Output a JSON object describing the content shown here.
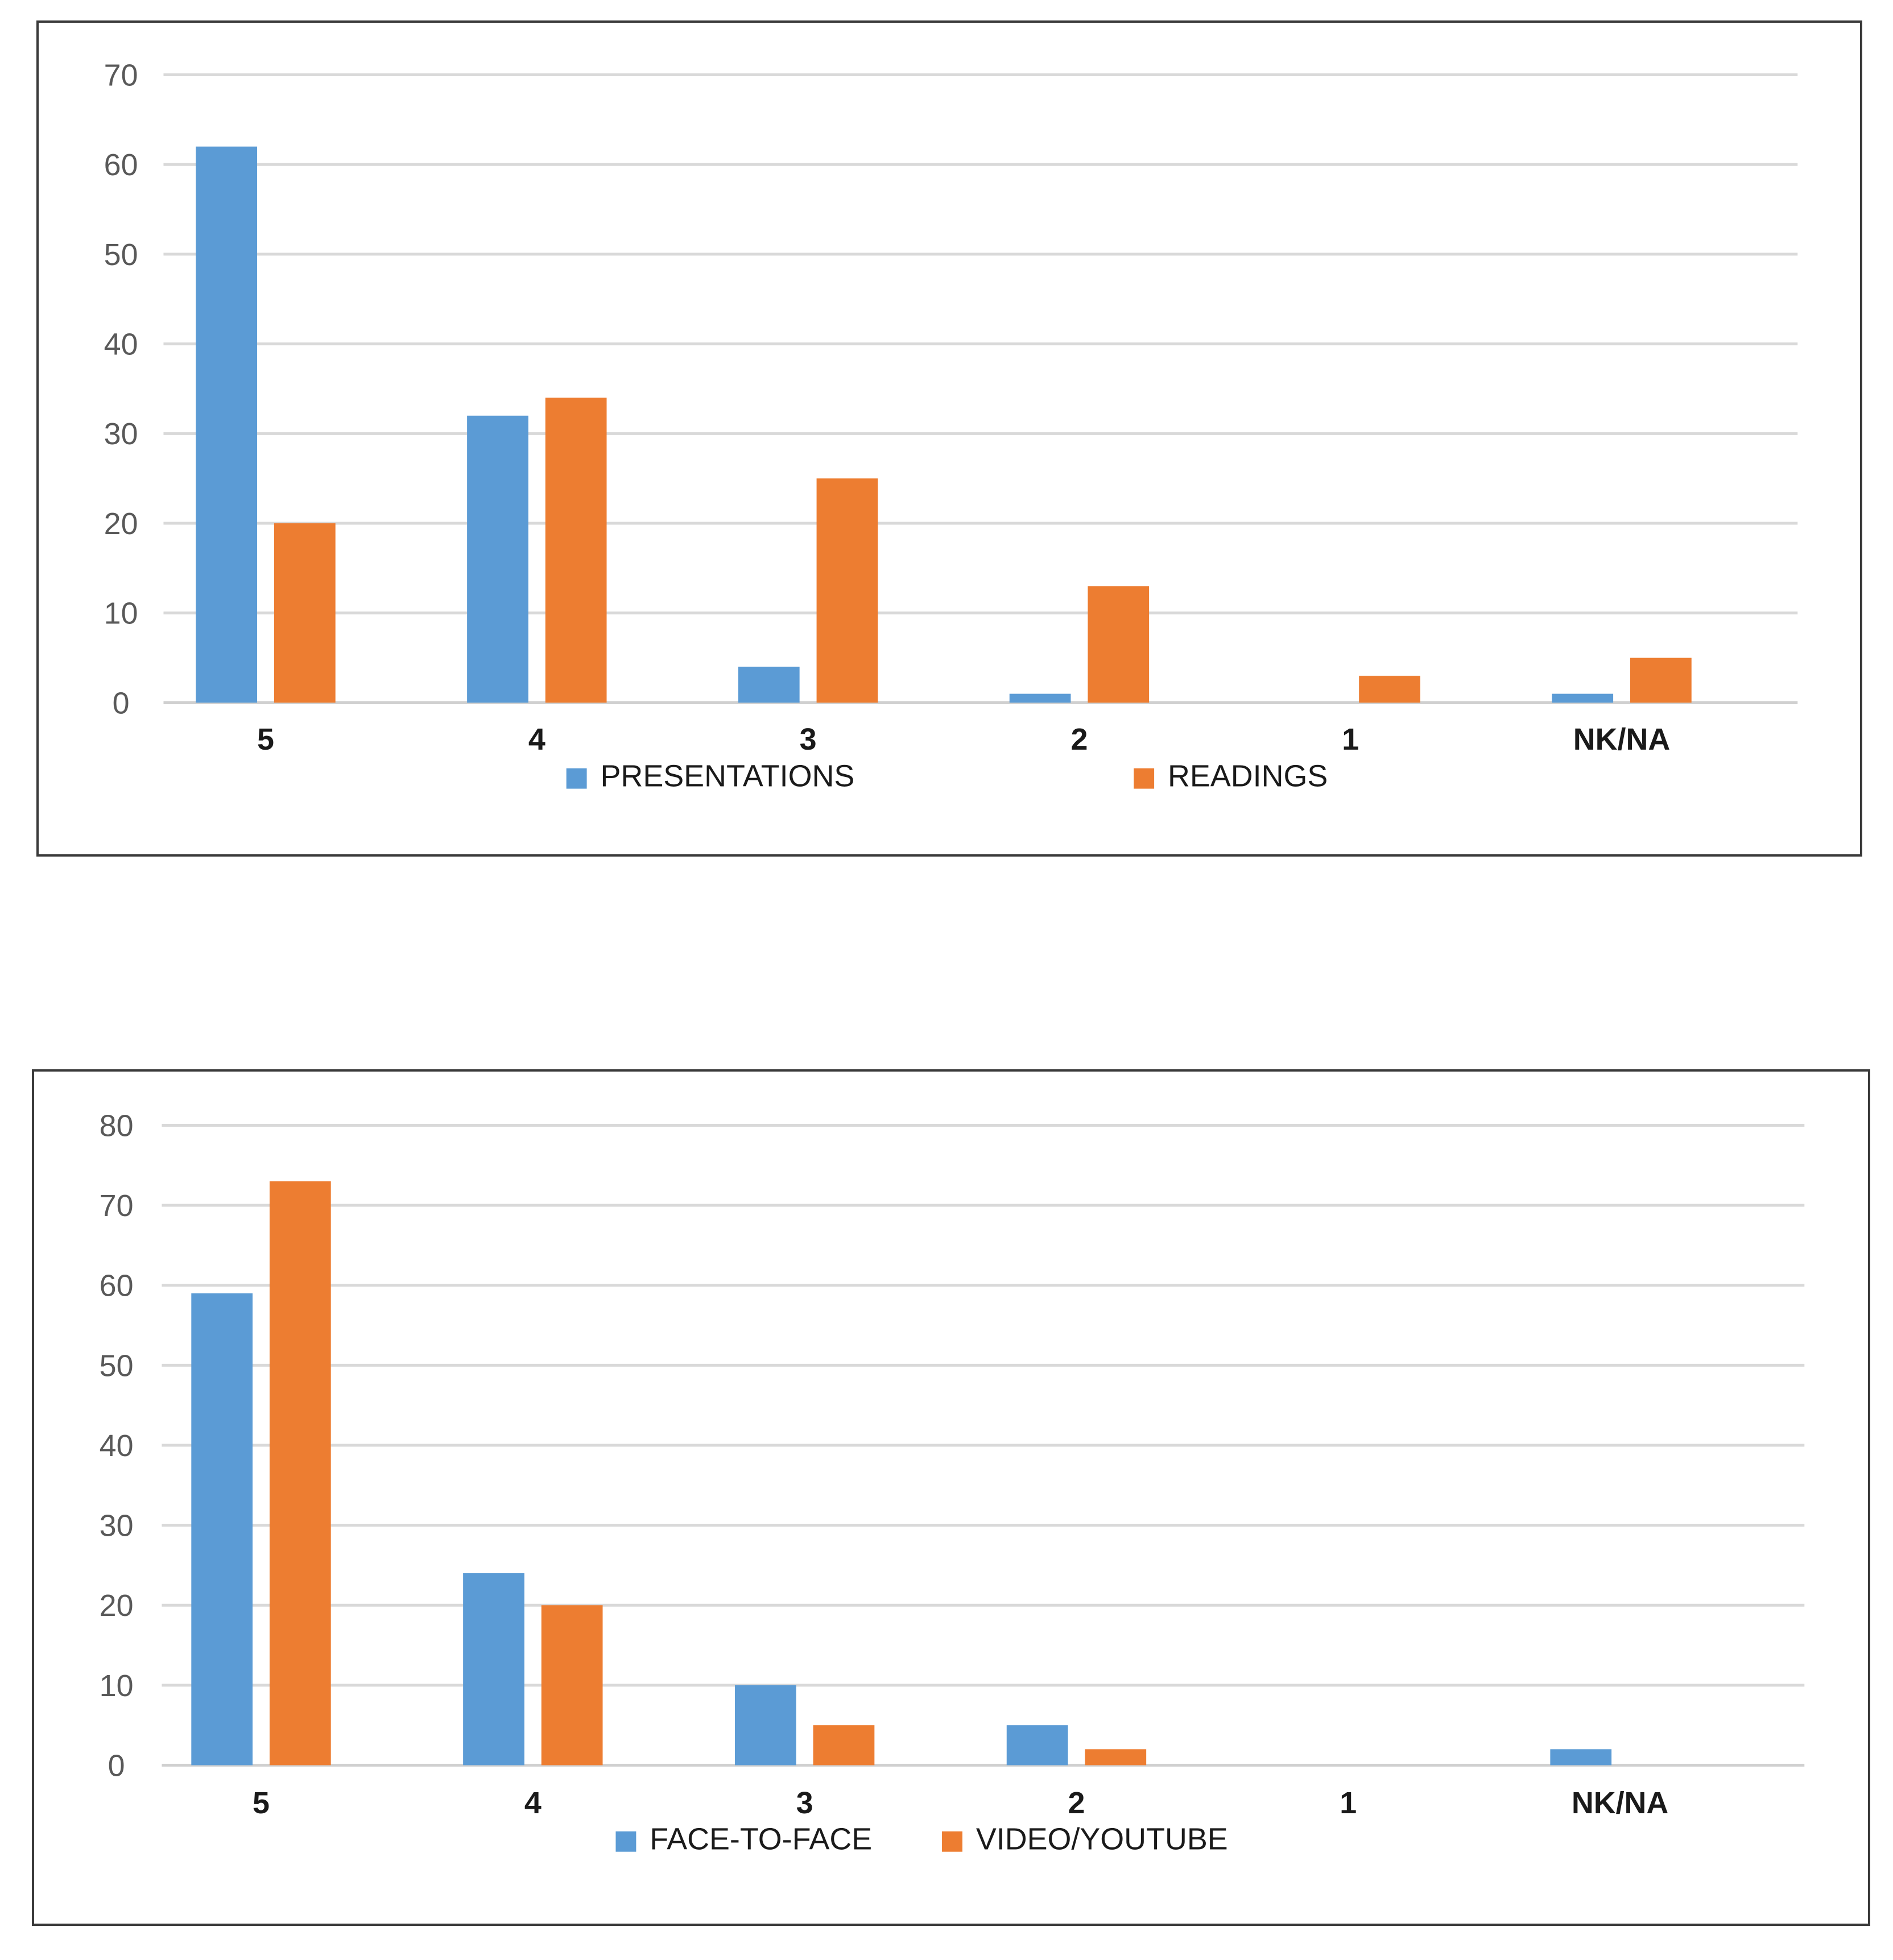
{
  "chart_data": [
    {
      "type": "bar",
      "title": "",
      "xlabel": "",
      "ylabel": "",
      "categories": [
        "5",
        "4",
        "3",
        "2",
        "1",
        "NK/NA"
      ],
      "ylim": [
        0,
        70
      ],
      "yticks": [
        0,
        10,
        20,
        30,
        40,
        50,
        60,
        70
      ],
      "grid": true,
      "legend_position": "bottom",
      "series": [
        {
          "name": "PRESENTATIONS",
          "color": "#5B9BD5",
          "values": [
            62,
            32,
            4,
            1,
            0,
            1
          ]
        },
        {
          "name": "READINGS",
          "color": "#ED7D31",
          "values": [
            20,
            34,
            25,
            13,
            3,
            5
          ]
        }
      ]
    },
    {
      "type": "bar",
      "title": "",
      "xlabel": "",
      "ylabel": "",
      "categories": [
        "5",
        "4",
        "3",
        "2",
        "1",
        "NK/NA"
      ],
      "ylim": [
        0,
        80
      ],
      "yticks": [
        0,
        10,
        20,
        30,
        40,
        50,
        60,
        70,
        80
      ],
      "grid": true,
      "legend_position": "bottom",
      "series": [
        {
          "name": "FACE-TO-FACE",
          "color": "#5B9BD5",
          "values": [
            59,
            24,
            10,
            5,
            0,
            2
          ]
        },
        {
          "name": "VIDEO/YOUTUBE",
          "color": "#ED7D31",
          "values": [
            73,
            20,
            5,
            2,
            0,
            0
          ]
        }
      ]
    }
  ]
}
